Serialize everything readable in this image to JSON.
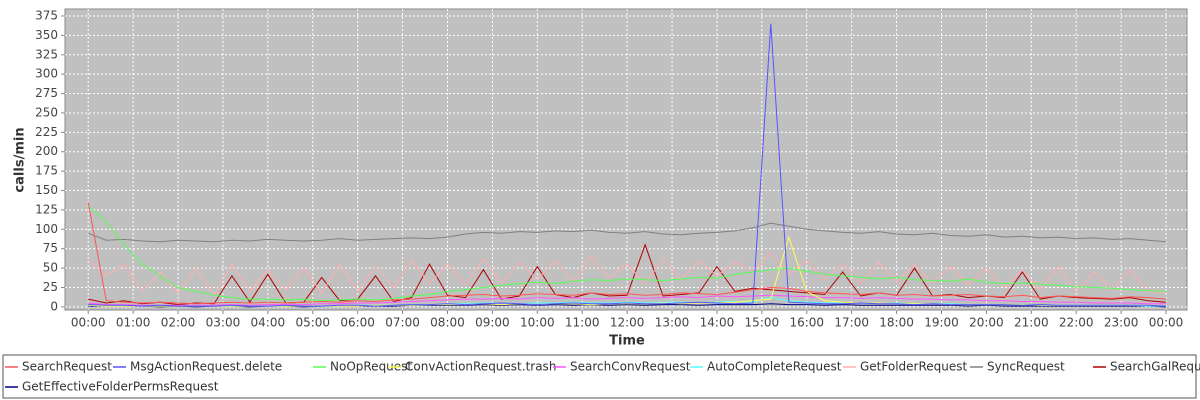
{
  "chart_data": {
    "type": "line",
    "y_label": "calls/min",
    "x_label": "Time",
    "xlim": [
      -31,
      1468
    ],
    "ylim": [
      -4,
      384
    ],
    "xticks": [
      {
        "value": 0,
        "label": "00:00"
      },
      {
        "value": 60,
        "label": "01:00"
      },
      {
        "value": 120,
        "label": "02:00"
      },
      {
        "value": 180,
        "label": "03:00"
      },
      {
        "value": 240,
        "label": "04:00"
      },
      {
        "value": 300,
        "label": "05:00"
      },
      {
        "value": 360,
        "label": "06:00"
      },
      {
        "value": 420,
        "label": "07:00"
      },
      {
        "value": 480,
        "label": "08:00"
      },
      {
        "value": 540,
        "label": "09:00"
      },
      {
        "value": 600,
        "label": "10:00"
      },
      {
        "value": 660,
        "label": "11:00"
      },
      {
        "value": 720,
        "label": "12:00"
      },
      {
        "value": 780,
        "label": "13:00"
      },
      {
        "value": 840,
        "label": "14:00"
      },
      {
        "value": 900,
        "label": "15:00"
      },
      {
        "value": 960,
        "label": "16:00"
      },
      {
        "value": 1020,
        "label": "17:00"
      },
      {
        "value": 1080,
        "label": "18:00"
      },
      {
        "value": 1140,
        "label": "19:00"
      },
      {
        "value": 1200,
        "label": "20:00"
      },
      {
        "value": 1260,
        "label": "21:00"
      },
      {
        "value": 1320,
        "label": "22:00"
      },
      {
        "value": 1380,
        "label": "23:00"
      },
      {
        "value": 1440,
        "label": "00:00"
      }
    ],
    "yticks": [
      0,
      25,
      50,
      75,
      100,
      125,
      150,
      175,
      200,
      225,
      250,
      275,
      300,
      325,
      350,
      375
    ],
    "grid": true,
    "x": [
      0,
      24,
      48,
      72,
      96,
      120,
      144,
      168,
      192,
      216,
      240,
      264,
      288,
      312,
      336,
      360,
      384,
      408,
      432,
      456,
      480,
      504,
      528,
      552,
      576,
      600,
      624,
      648,
      672,
      696,
      720,
      744,
      768,
      792,
      816,
      840,
      864,
      888,
      912,
      936,
      960,
      984,
      1008,
      1032,
      1056,
      1080,
      1104,
      1128,
      1152,
      1176,
      1200,
      1224,
      1248,
      1272,
      1296,
      1320,
      1344,
      1368,
      1392,
      1416,
      1440
    ],
    "series": [
      {
        "name": "SearchRequest",
        "color": "#ff5555",
        "values": [
          135,
          8,
          6,
          5,
          6,
          5,
          4,
          5,
          6,
          5,
          6,
          5,
          6,
          7,
          6,
          8,
          7,
          9,
          10,
          12,
          14,
          15,
          16,
          14,
          15,
          17,
          16,
          15,
          18,
          16,
          17,
          15,
          16,
          18,
          17,
          16,
          19,
          22,
          25,
          24,
          20,
          18,
          17,
          16,
          18,
          15,
          16,
          14,
          15,
          16,
          14,
          13,
          15,
          12,
          14,
          13,
          12,
          11,
          13,
          12,
          10
        ]
      },
      {
        "name": "MsgActionRequest.delete",
        "color": "#5555ff",
        "values": [
          3,
          2,
          2,
          1,
          2,
          1,
          1,
          1,
          2,
          1,
          1,
          2,
          1,
          1,
          2,
          2,
          1,
          2,
          3,
          3,
          4,
          3,
          4,
          5,
          4,
          3,
          4,
          5,
          4,
          4,
          5,
          4,
          4,
          5,
          6,
          5,
          4,
          5,
          365,
          6,
          5,
          4,
          4,
          5,
          4,
          4,
          3,
          4,
          3,
          3,
          3,
          3,
          2,
          3,
          2,
          2,
          2,
          2,
          2,
          2,
          1
        ]
      },
      {
        "name": "NoOpRequest",
        "color": "#55ff55",
        "values": [
          130,
          110,
          80,
          55,
          40,
          25,
          20,
          15,
          12,
          10,
          10,
          9,
          10,
          8,
          9,
          10,
          9,
          11,
          14,
          16,
          20,
          22,
          25,
          28,
          30,
          32,
          30,
          33,
          35,
          34,
          36,
          35,
          34,
          36,
          38,
          37,
          42,
          45,
          48,
          50,
          46,
          42,
          40,
          38,
          36,
          38,
          35,
          34,
          33,
          36,
          32,
          30,
          31,
          29,
          28,
          26,
          25,
          24,
          22,
          21,
          20
        ]
      },
      {
        "name": "ConvActionRequest.trash",
        "color": "#ffff55",
        "values": [
          2,
          1,
          1,
          1,
          1,
          1,
          1,
          1,
          1,
          1,
          1,
          1,
          1,
          1,
          1,
          1,
          2,
          2,
          2,
          3,
          3,
          3,
          4,
          3,
          4,
          3,
          4,
          4,
          3,
          4,
          4,
          4,
          5,
          4,
          5,
          5,
          6,
          8,
          10,
          90,
          20,
          8,
          6,
          5,
          5,
          4,
          4,
          4,
          3,
          3,
          3,
          3,
          3,
          2,
          2,
          2,
          2,
          2,
          2,
          2,
          1
        ]
      },
      {
        "name": "SearchConvRequest",
        "color": "#ff55ff",
        "values": [
          5,
          3,
          3,
          2,
          2,
          2,
          2,
          2,
          3,
          2,
          3,
          3,
          3,
          4,
          4,
          5,
          5,
          6,
          7,
          8,
          9,
          10,
          10,
          11,
          10,
          12,
          11,
          12,
          10,
          11,
          12,
          11,
          12,
          13,
          12,
          14,
          13,
          14,
          15,
          14,
          13,
          12,
          12,
          11,
          12,
          11,
          10,
          10,
          9,
          9,
          8,
          8,
          7,
          7,
          6,
          6,
          5,
          5,
          5,
          4,
          4
        ]
      },
      {
        "name": "AutoCompleteRequest",
        "color": "#55ffff",
        "values": [
          2,
          1,
          1,
          1,
          1,
          1,
          1,
          1,
          1,
          1,
          1,
          1,
          1,
          1,
          1,
          2,
          2,
          2,
          3,
          3,
          4,
          4,
          5,
          5,
          4,
          5,
          5,
          6,
          5,
          5,
          6,
          5,
          6,
          6,
          5,
          6,
          7,
          6,
          12,
          8,
          6,
          5,
          5,
          5,
          4,
          5,
          4,
          4,
          4,
          3,
          3,
          3,
          3,
          2,
          2,
          2,
          2,
          2,
          2,
          1,
          1
        ]
      },
      {
        "name": "GetFolderRequest",
        "color": "#ffafaf",
        "values": [
          60,
          40,
          55,
          20,
          45,
          18,
          50,
          15,
          55,
          20,
          48,
          22,
          50,
          18,
          55,
          20,
          52,
          25,
          60,
          30,
          55,
          28,
          62,
          30,
          58,
          35,
          60,
          32,
          65,
          38,
          55,
          30,
          62,
          35,
          60,
          40,
          58,
          45,
          70,
          42,
          60,
          35,
          55,
          30,
          58,
          32,
          55,
          30,
          52,
          28,
          50,
          25,
          48,
          22,
          52,
          20,
          45,
          22,
          48,
          20,
          18
        ]
      },
      {
        "name": "SyncRequest",
        "color": "#808080",
        "values": [
          95,
          86,
          87,
          85,
          84,
          86,
          85,
          84,
          86,
          85,
          87,
          86,
          85,
          86,
          88,
          86,
          87,
          88,
          89,
          88,
          90,
          94,
          96,
          95,
          97,
          96,
          98,
          97,
          99,
          96,
          95,
          97,
          94,
          93,
          95,
          96,
          98,
          102,
          108,
          104,
          100,
          98,
          96,
          95,
          97,
          94,
          93,
          95,
          92,
          91,
          93,
          90,
          91,
          89,
          90,
          88,
          89,
          87,
          88,
          86,
          84
        ]
      },
      {
        "name": "SearchGalRequest",
        "color": "#b00000",
        "values": [
          10,
          5,
          8,
          4,
          6,
          3,
          5,
          4,
          40,
          6,
          42,
          5,
          6,
          38,
          8,
          10,
          40,
          7,
          12,
          55,
          15,
          12,
          48,
          10,
          14,
          52,
          16,
          12,
          18,
          14,
          15,
          80,
          14,
          16,
          18,
          52,
          20,
          24,
          22,
          20,
          18,
          16,
          45,
          14,
          18,
          15,
          50,
          14,
          16,
          12,
          14,
          12,
          45,
          10,
          14,
          12,
          11,
          10,
          12,
          8,
          6
        ]
      },
      {
        "name": "GetEffectiveFolderPermsRequest",
        "color": "#000080",
        "values": [
          1,
          1,
          1,
          1,
          0,
          1,
          0,
          1,
          1,
          0,
          1,
          1,
          0,
          1,
          1,
          1,
          1,
          1,
          2,
          2,
          2,
          2,
          3,
          2,
          3,
          2,
          3,
          2,
          3,
          2,
          3,
          2,
          3,
          3,
          2,
          3,
          3,
          3,
          4,
          3,
          3,
          2,
          3,
          2,
          2,
          2,
          2,
          2,
          2,
          1,
          2,
          1,
          1,
          1,
          1,
          1,
          1,
          1,
          1,
          1,
          0
        ]
      }
    ]
  }
}
